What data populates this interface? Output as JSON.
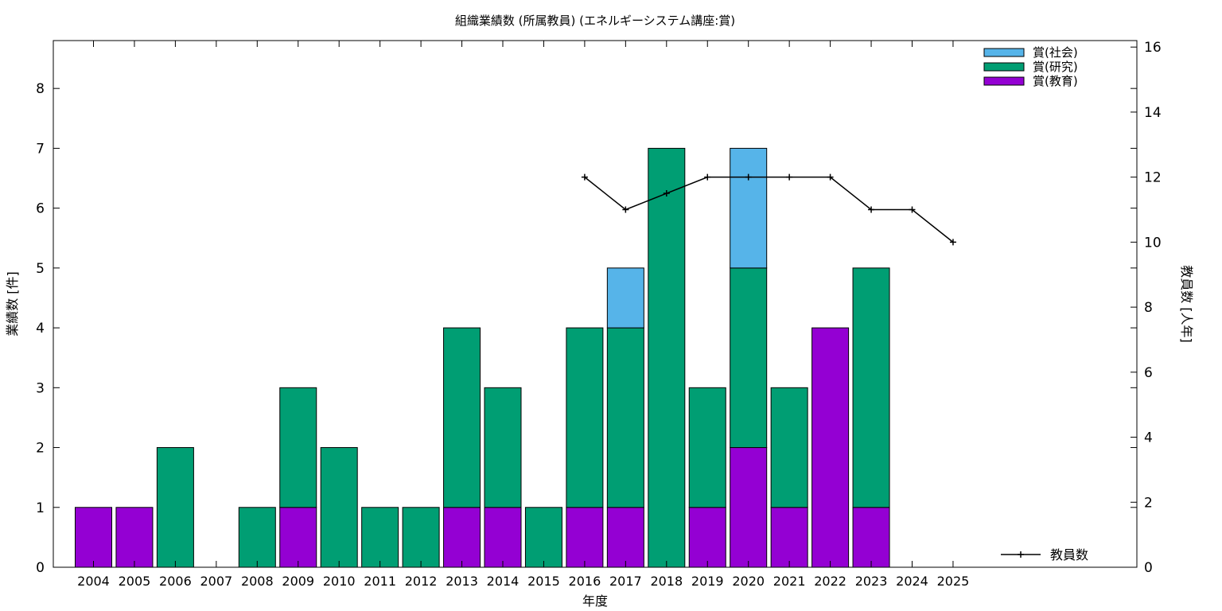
{
  "chart_data": {
    "type": "bar",
    "stacked": true,
    "title": "組織業績数 (所属教員) (エネルギーシステム講座:賞)",
    "xlabel": "年度",
    "ylabel": "業績数 [件]",
    "y2label": "教員数 [人年]",
    "categories": [
      "2004",
      "2005",
      "2006",
      "2007",
      "2008",
      "2009",
      "2010",
      "2011",
      "2012",
      "2013",
      "2014",
      "2015",
      "2016",
      "2017",
      "2018",
      "2019",
      "2020",
      "2021",
      "2022",
      "2023",
      "2024",
      "2025"
    ],
    "ylim": [
      0,
      8.8
    ],
    "yticks": [
      0,
      1,
      2,
      3,
      4,
      5,
      6,
      7,
      8
    ],
    "y2lim": [
      0,
      16.2
    ],
    "y2ticks": [
      0,
      2,
      4,
      6,
      8,
      10,
      12,
      14,
      16
    ],
    "grid": false,
    "series": [
      {
        "name": "賞(教育)",
        "color": "#9400d3",
        "values": [
          1,
          1,
          0,
          0,
          0,
          1,
          0,
          0,
          0,
          1,
          1,
          0,
          1,
          1,
          0,
          1,
          2,
          1,
          4,
          1,
          0,
          0
        ]
      },
      {
        "name": "賞(研究)",
        "color": "#009e73",
        "values": [
          0,
          0,
          2,
          0,
          1,
          2,
          2,
          1,
          1,
          3,
          2,
          1,
          3,
          3,
          7,
          2,
          3,
          2,
          0,
          4,
          0,
          0
        ]
      },
      {
        "name": "賞(社会)",
        "color": "#56b4e9",
        "values": [
          0,
          0,
          0,
          0,
          0,
          0,
          0,
          0,
          0,
          0,
          0,
          0,
          0,
          1,
          0,
          0,
          2,
          0,
          0,
          0,
          0,
          0
        ]
      }
    ],
    "line_series": {
      "name": "教員数",
      "color": "#000000",
      "axis": "y2",
      "x": [
        "2016",
        "2017",
        "2018",
        "2019",
        "2020",
        "2021",
        "2022",
        "2023",
        "2024",
        "2025"
      ],
      "values": [
        12,
        11,
        11.5,
        12,
        12,
        12,
        12,
        11,
        11,
        10
      ]
    },
    "legend_placement": "top-right"
  }
}
